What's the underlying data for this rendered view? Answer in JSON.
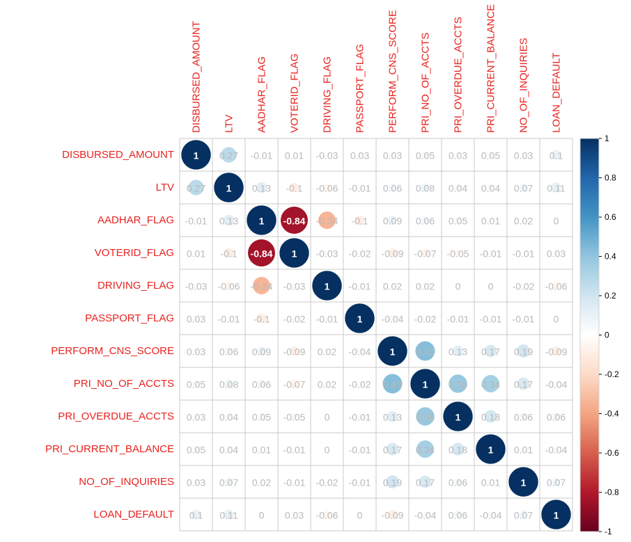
{
  "chart_data": {
    "type": "heatmap",
    "variables": [
      "DISBURSED_AMOUNT",
      "LTV",
      "AADHAR_FLAG",
      "VOTERID_FLAG",
      "DRIVING_FLAG",
      "PASSPORT_FLAG",
      "PERFORM_CNS_SCORE",
      "PRI_NO_OF_ACCTS",
      "PRI_OVERDUE_ACCTS",
      "PRI_CURRENT_BALANCE",
      "NO_OF_INQUIRIES",
      "LOAN_DEFAULT"
    ],
    "matrix": [
      [
        1,
        0.27,
        -0.01,
        0.01,
        -0.03,
        0.03,
        0.03,
        0.05,
        0.03,
        0.05,
        0.03,
        0.1
      ],
      [
        0.27,
        1,
        0.13,
        -0.1,
        -0.06,
        -0.01,
        0.06,
        0.08,
        0.04,
        0.04,
        0.07,
        0.11
      ],
      [
        -0.01,
        0.13,
        1,
        -0.84,
        -0.34,
        -0.1,
        0.09,
        0.06,
        0.05,
        0.01,
        0.02,
        0
      ],
      [
        0.01,
        -0.1,
        -0.84,
        1,
        -0.03,
        -0.02,
        -0.09,
        -0.07,
        -0.05,
        -0.01,
        -0.01,
        0.03
      ],
      [
        -0.03,
        -0.06,
        -0.34,
        -0.03,
        1,
        -0.01,
        0.02,
        0.02,
        0,
        0,
        -0.02,
        -0.06
      ],
      [
        0.03,
        -0.01,
        -0.1,
        -0.02,
        -0.01,
        1,
        -0.04,
        -0.02,
        -0.01,
        -0.01,
        -0.01,
        0
      ],
      [
        0.03,
        0.06,
        0.09,
        -0.09,
        0.02,
        -0.04,
        1,
        0.43,
        0.13,
        0.17,
        0.19,
        -0.09
      ],
      [
        0.05,
        0.08,
        0.06,
        -0.07,
        0.02,
        -0.02,
        0.43,
        1,
        0.38,
        0.34,
        0.17,
        -0.04
      ],
      [
        0.03,
        0.04,
        0.05,
        -0.05,
        0,
        -0.01,
        0.13,
        0.38,
        1,
        0.18,
        0.06,
        0.06
      ],
      [
        0.05,
        0.04,
        0.01,
        -0.01,
        0,
        -0.01,
        0.17,
        0.34,
        0.18,
        1,
        0.01,
        -0.04
      ],
      [
        0.03,
        0.07,
        0.02,
        -0.01,
        -0.02,
        -0.01,
        0.19,
        0.17,
        0.06,
        0.01,
        1,
        0.07
      ],
      [
        0.1,
        0.11,
        0,
        0.03,
        -0.06,
        0,
        -0.09,
        -0.04,
        0.06,
        -0.04,
        0.07,
        1
      ]
    ],
    "colorbar": {
      "range": [
        -1,
        1
      ],
      "ticks": [
        "1",
        "0.8",
        "0.6",
        "0.4",
        "0.2",
        "0",
        "-0.2",
        "-0.4",
        "-0.6",
        "-0.8",
        "-1"
      ],
      "colors": [
        "#67001f",
        "#b2182b",
        "#d6604d",
        "#f4a582",
        "#fddbc7",
        "#ffffff",
        "#d1e5f0",
        "#92c5de",
        "#4393c3",
        "#2166ac",
        "#053061"
      ]
    },
    "label_color": "#e8231f",
    "grid": true,
    "legend": "right"
  }
}
